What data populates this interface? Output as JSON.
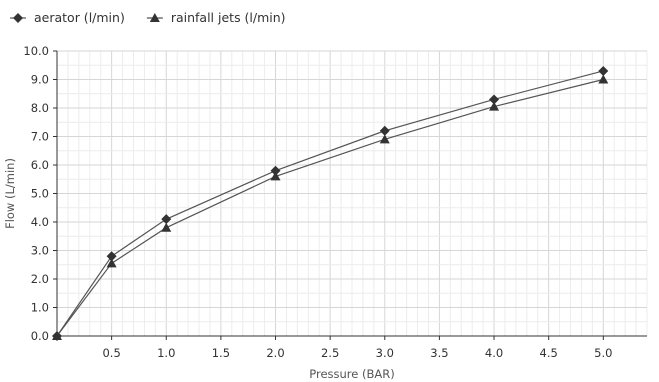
{
  "chart_data": {
    "type": "line",
    "xlabel": "Pressure (BAR)",
    "ylabel": "Flow (L/min)",
    "xlim": [
      0,
      5.4
    ],
    "ylim": [
      0,
      10
    ],
    "x_ticks": [
      0.5,
      1.0,
      1.5,
      2.0,
      2.5,
      3.0,
      3.5,
      4.0,
      4.5,
      5.0
    ],
    "x_tick_labels": [
      "0.5",
      "1.0",
      "1.5",
      "2.0",
      "2.5",
      "3.0",
      "3.5",
      "4.0",
      "4.5",
      "5.0"
    ],
    "y_ticks": [
      0,
      1,
      2,
      3,
      4,
      5,
      6,
      7,
      8,
      9,
      10
    ],
    "y_tick_labels": [
      "0.0",
      "1.0",
      "2.0",
      "3.0",
      "4.0",
      "5.0",
      "6.0",
      "7.0",
      "8.0",
      "9.0",
      "10.0"
    ],
    "grid": true,
    "legend_position": "top-left",
    "series": [
      {
        "name": "aerator (l/min)",
        "marker": "diamond",
        "color": "#333333",
        "x": [
          0,
          0.5,
          1.0,
          2.0,
          3.0,
          4.0,
          5.0
        ],
        "y": [
          0,
          2.8,
          4.1,
          5.8,
          7.2,
          8.3,
          9.3
        ]
      },
      {
        "name": "rainfall jets (l/min)",
        "marker": "triangle",
        "color": "#333333",
        "x": [
          0,
          0.5,
          1.0,
          2.0,
          3.0,
          4.0,
          5.0
        ],
        "y": [
          0,
          2.55,
          3.8,
          5.6,
          6.9,
          8.05,
          9.0
        ]
      }
    ]
  }
}
